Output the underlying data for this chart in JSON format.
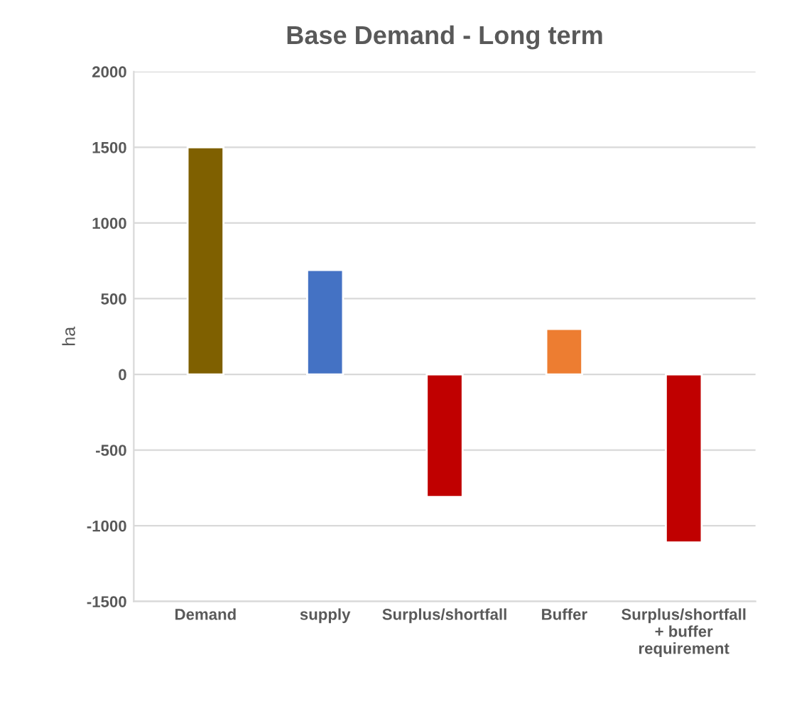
{
  "chart_data": {
    "type": "bar",
    "title": "Base Demand - Long term",
    "ylabel": "ha",
    "categories": [
      "Demand",
      "supply",
      "Surplus/shortfall",
      "Buffer",
      "Surplus/shortfall\n+ buffer\nrequirement"
    ],
    "values": [
      1500,
      690,
      -810,
      300,
      -1110
    ],
    "colors": [
      "#7f6000",
      "#4472c4",
      "#c00000",
      "#ed7d31",
      "#c00000"
    ],
    "ylim": [
      -1500,
      2000
    ],
    "yticks": [
      -1500,
      -1000,
      -500,
      0,
      500,
      1000,
      1500,
      2000
    ],
    "grid": "y"
  }
}
